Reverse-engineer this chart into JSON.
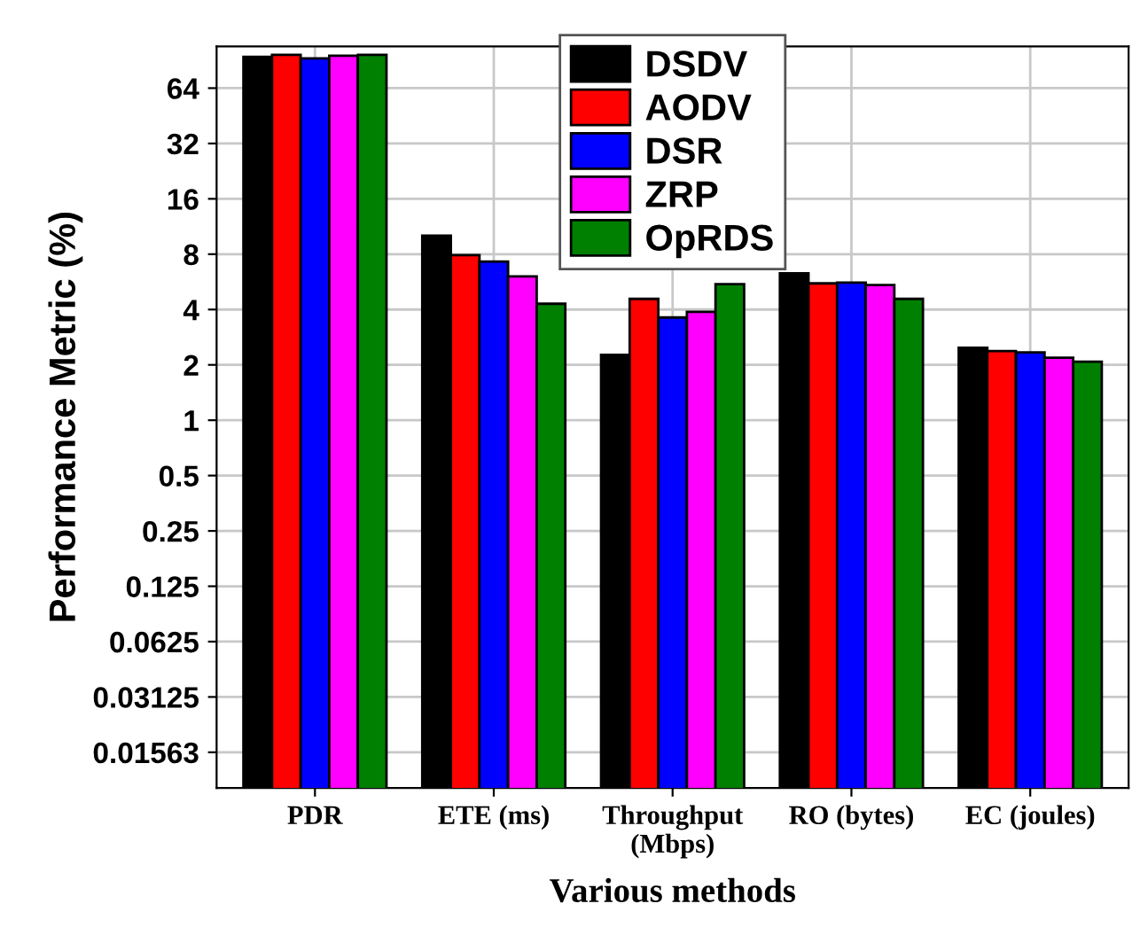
{
  "chart_data": {
    "type": "bar",
    "xlabel": "Various methods",
    "ylabel": "Performance Metric (%)",
    "categories": [
      "PDR",
      "ETE (ms)",
      "Throughput\n(Mbps)",
      "RO (bytes)",
      "EC (joules)"
    ],
    "series": [
      {
        "name": "DSDV",
        "color": "#000000",
        "values": [
          94.8,
          10.1,
          2.27,
          6.3,
          2.48
        ]
      },
      {
        "name": "AODV",
        "color": "#ff0000",
        "values": [
          97,
          7.9,
          4.57,
          5.55,
          2.38
        ]
      },
      {
        "name": "DSR",
        "color": "#0000ff",
        "values": [
          93,
          7.3,
          3.62,
          5.6,
          2.34
        ]
      },
      {
        "name": "ZRP",
        "color": "#ff00ff",
        "values": [
          96,
          6.06,
          3.89,
          5.43,
          2.19
        ]
      },
      {
        "name": "OpRDS",
        "color": "#008000",
        "values": [
          97,
          4.3,
          5.5,
          4.57,
          2.08
        ]
      }
    ],
    "log": true,
    "ylim": [
      0.01,
      108
    ],
    "yticks": [
      0.01563,
      0.03125,
      0.0625,
      0.125,
      0.25,
      0.5,
      1,
      2,
      4,
      8,
      16,
      32,
      64
    ],
    "grid": true,
    "legend": "top"
  }
}
